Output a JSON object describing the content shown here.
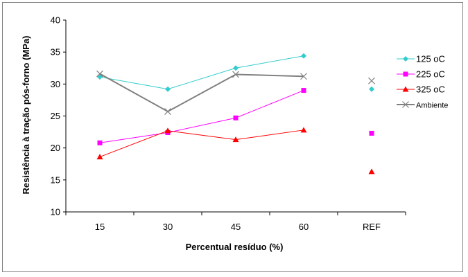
{
  "chart_data": {
    "type": "line",
    "categories": [
      "15",
      "30",
      "45",
      "60",
      "REF"
    ],
    "xlabel": "Percentual resíduo (%)",
    "ylabel": "Resistência à tração pós-forno (MPa)",
    "ylim": [
      10,
      40
    ],
    "yticks": [
      10,
      15,
      20,
      25,
      30,
      35,
      40
    ],
    "grid": false,
    "legend_position": "right",
    "series": [
      {
        "name": "125 oC",
        "color": "#33CCCC",
        "marker": "diamond",
        "values": [
          31.1,
          29.2,
          32.5,
          34.4,
          29.2
        ]
      },
      {
        "name": "225 oC",
        "color": "#FF00FF",
        "marker": "square",
        "values": [
          20.8,
          22.4,
          24.7,
          29.0,
          22.3
        ]
      },
      {
        "name": "325 oC",
        "color": "#FF0000",
        "marker": "triangle",
        "values": [
          18.6,
          22.7,
          21.3,
          22.8,
          16.3
        ]
      },
      {
        "name": "Ambiente",
        "color": "#808080",
        "marker": "x",
        "values": [
          31.6,
          25.7,
          31.5,
          31.2,
          30.5
        ]
      }
    ],
    "connected_points": 4
  }
}
